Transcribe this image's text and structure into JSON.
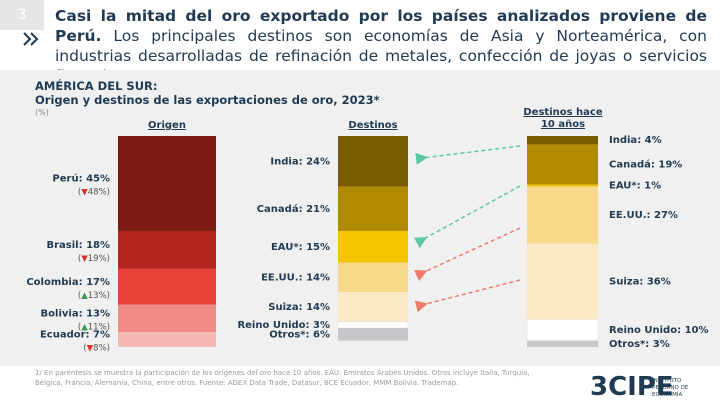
{
  "slide_number": "3",
  "headline_bold": "Casi la mitad del oro exportado por los países analizados proviene de Perú.",
  "headline_rest": "Los principales destinos son economías de Asia y Norteamérica, con industrias desarrolladas de refinación de metales, confección de joyas o servicios financieros.",
  "footnote": "1/ En paréntesis se muestra la participación de los orígenes del oro hace 10 años. EAU: Emiratos Árabes Unidos. Otros incluye Italia, Turquía, Bélgica, Francia, Alemania, China, entre otros. Fuente: ADEX Data Trade, Datasur, BCE Ecuador, MMM Bolivia. Trademap.",
  "logo": "3CIPE",
  "logo_subtitle": "INSTITUTO PERUANO DE ECONOMÍA",
  "chart_title": "AMÉRICA DEL SUR:",
  "chart_subtitle": "Origen y destinos de las exportaciones de oro, 2023*",
  "unit": "(%)",
  "chart_data": [
    {
      "type": "stacked_column",
      "title": "Origen",
      "categories": [
        "Perú",
        "Brasil",
        "Colombia",
        "Bolivia",
        "Ecuador"
      ],
      "values": [
        45,
        18,
        17,
        13,
        7
      ],
      "value_labels": [
        "45%",
        "18%",
        "17%",
        "13%",
        "7%"
      ],
      "colors": [
        "#7b1a12",
        "#b3261e",
        "#e8413a",
        "#f08b87",
        "#f6b8b4"
      ],
      "trend_markers": [
        "▼",
        "▼",
        "▲",
        "▲",
        "▼"
      ],
      "trend_colors": [
        "#d9302a",
        "#d9302a",
        "#3a9a4a",
        "#3a9a4a",
        "#d9302a"
      ],
      "previous_values": [
        48,
        19,
        13,
        11,
        8
      ],
      "previous_labels": [
        "48%",
        "19%",
        "13%",
        "11%",
        "8%"
      ],
      "ylim": [
        0,
        100
      ]
    },
    {
      "type": "stacked_column",
      "title": "Destinos",
      "categories": [
        "India",
        "Canadá",
        "EAU*",
        "EE.UU.",
        "Suiza",
        "Reino Unido",
        "Otros*"
      ],
      "values": [
        24,
        21,
        15,
        14,
        14,
        3,
        6
      ],
      "value_labels": [
        "24%",
        "21%",
        "15%",
        "14%",
        "14%",
        "3%",
        "6%"
      ],
      "colors": [
        "#7a5c00",
        "#b08a00",
        "#f5c400",
        "#f7d98a",
        "#fbe8c4",
        "#ffffff",
        "#c8c8cc"
      ],
      "ylim": [
        0,
        100
      ]
    },
    {
      "type": "stacked_column",
      "title": "Destinos hace 10 años",
      "categories": [
        "India",
        "Canadá",
        "EAU*",
        "EE.UU.",
        "Suiza",
        "Reino Unido",
        "Otros*"
      ],
      "values": [
        4,
        19,
        1,
        27,
        36,
        10,
        3
      ],
      "value_labels": [
        "4%",
        "19%",
        "1%",
        "27%",
        "36%",
        "10%",
        "3%"
      ],
      "colors": [
        "#7a5c00",
        "#b08a00",
        "#f5c400",
        "#f7d98a",
        "#fbe8c4",
        "#ffffff",
        "#c8c8cc"
      ],
      "ylim": [
        0,
        100
      ]
    }
  ]
}
